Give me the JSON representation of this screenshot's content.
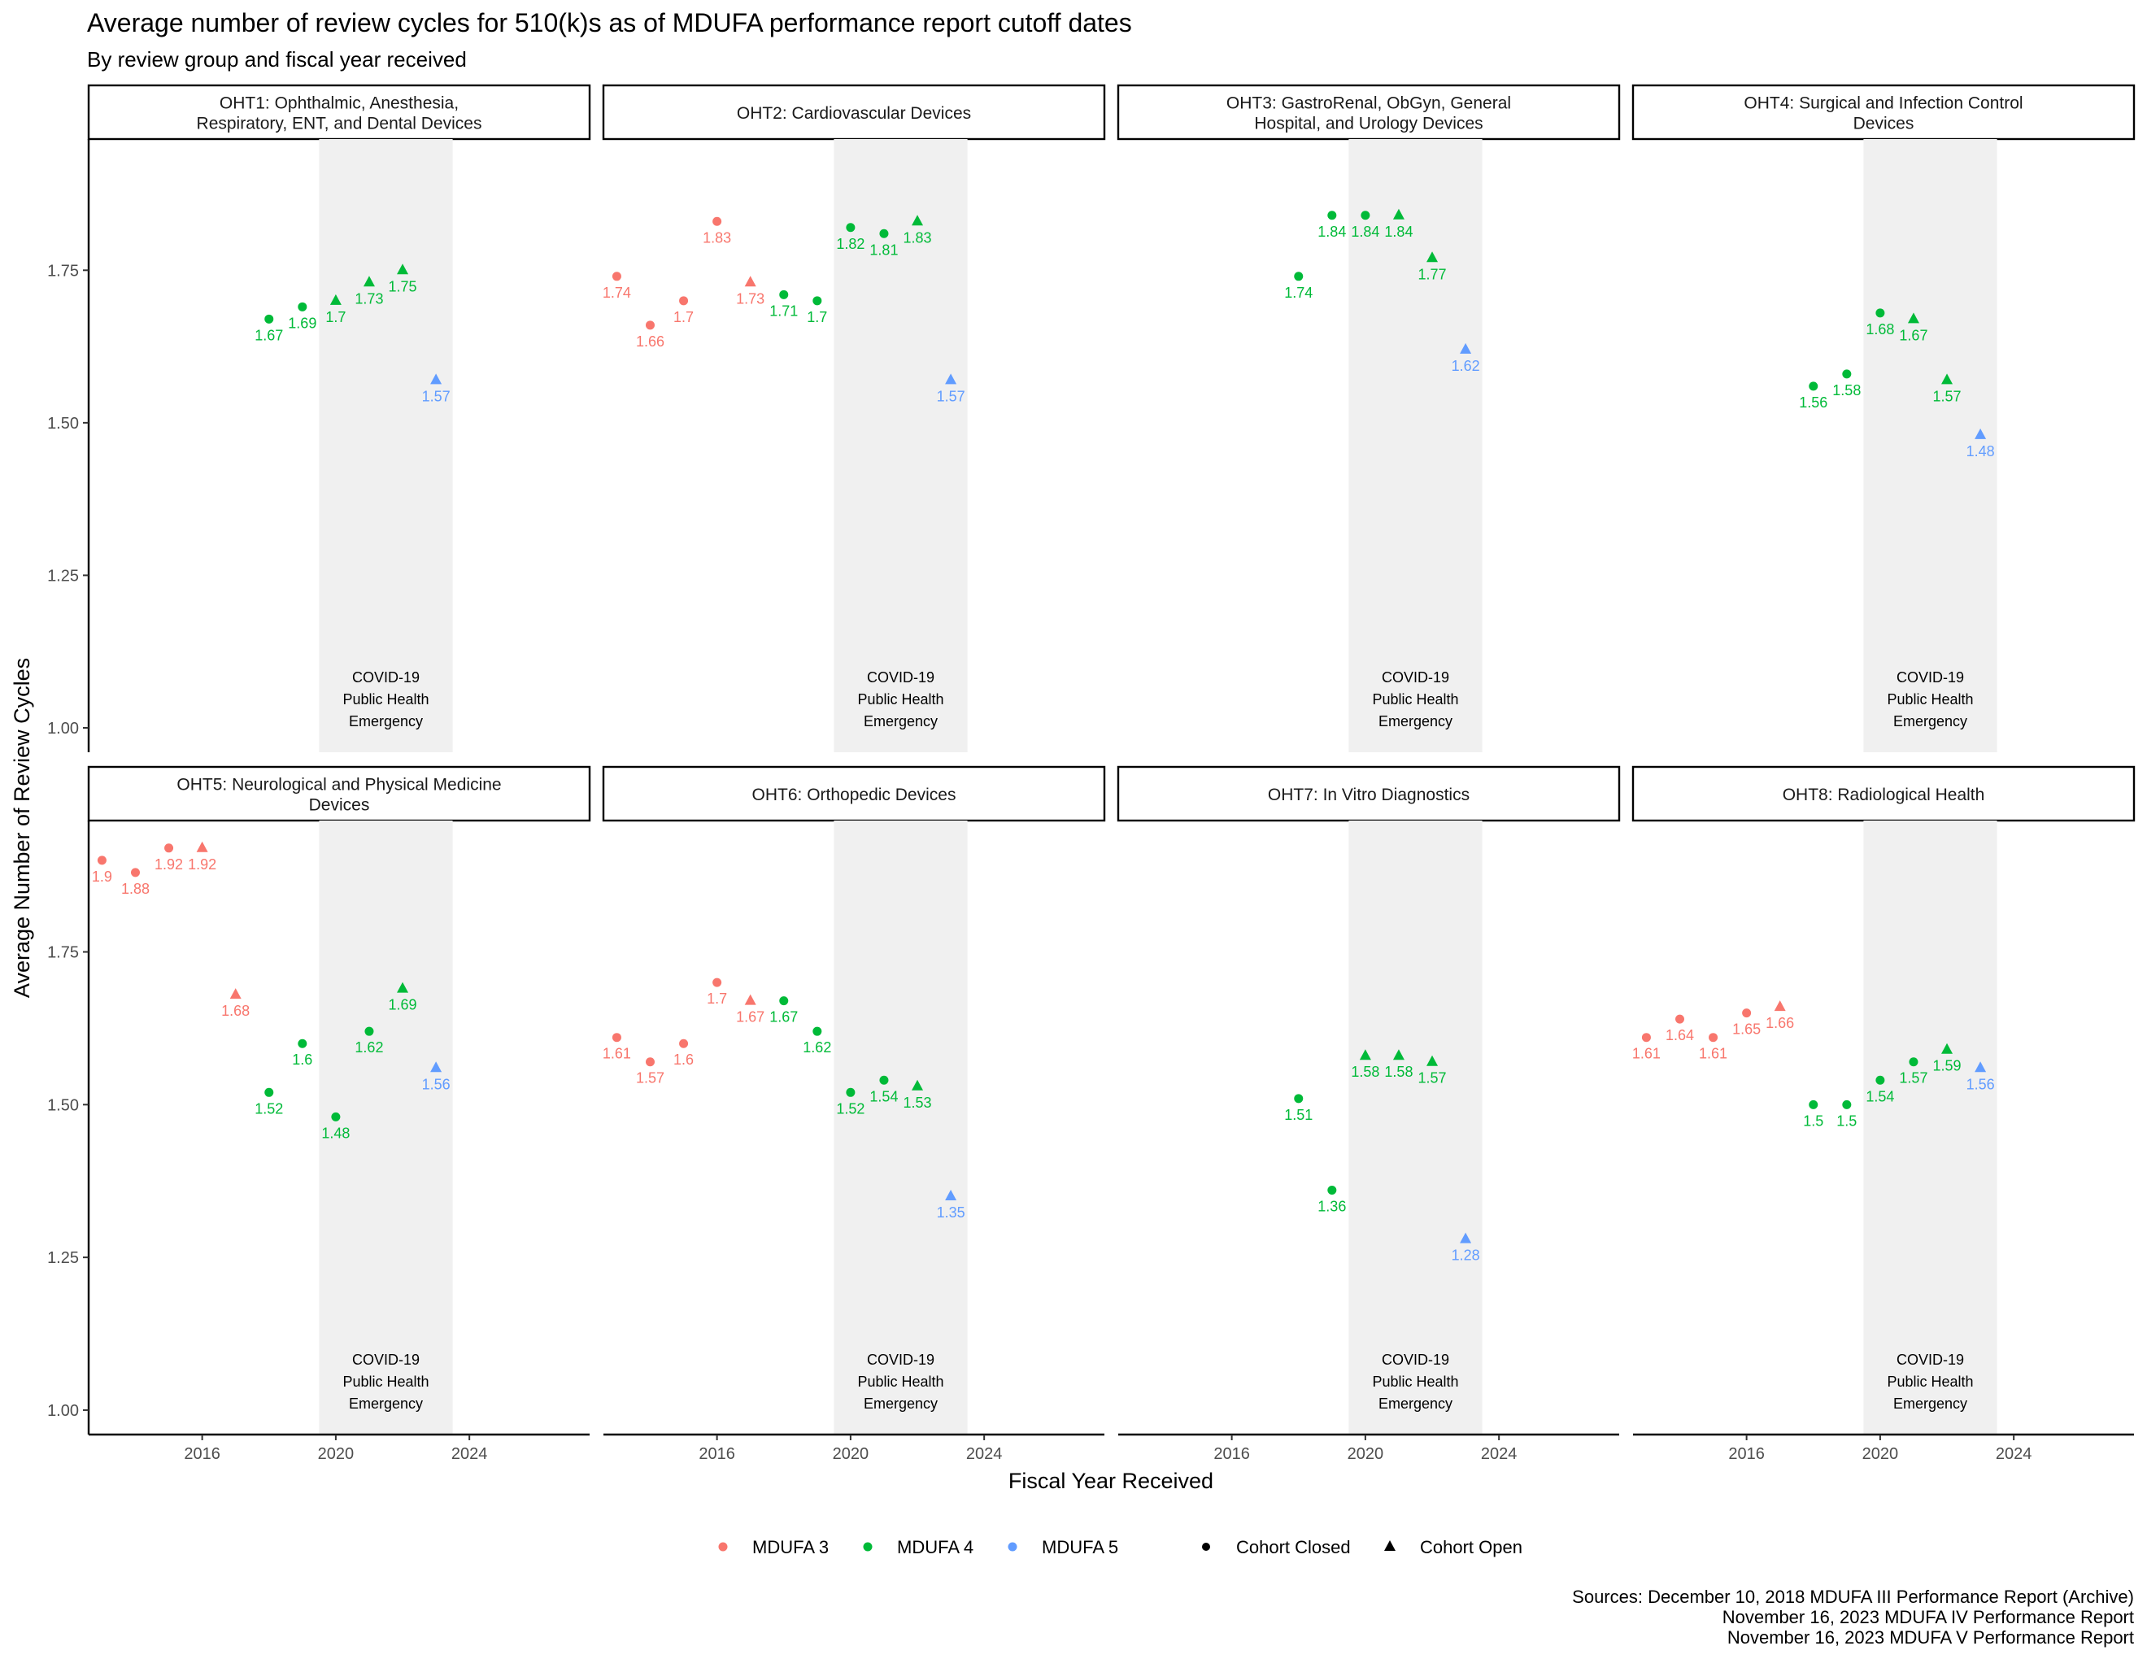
{
  "title": "Average number of review cycles for 510(k)s as of MDUFA performance report cutoff dates",
  "subtitle": "By review group and fiscal year received",
  "xlabel": "Fiscal Year Received",
  "ylabel": "Average Number of Review Cycles",
  "sources": [
    "Sources: December 10, 2018 MDUFA III Performance Report (Archive)",
    "November 16, 2023 MDUFA IV Performance Report",
    "November 16, 2023 MDUFA V Performance Report"
  ],
  "covid_label": [
    "COVID-19",
    "Public Health",
    "Emergency"
  ],
  "legend": {
    "colors": [
      {
        "label": "MDUFA 3",
        "color": "#F8766D"
      },
      {
        "label": "MDUFA 4",
        "color": "#00BA38"
      },
      {
        "label": "MDUFA 5",
        "color": "#619CFF"
      }
    ],
    "shapes": [
      {
        "label": "Cohort Closed",
        "shape": "circle"
      },
      {
        "label": "Cohort Open",
        "shape": "triangle"
      }
    ]
  },
  "chart_data": {
    "type": "scatter",
    "xlim": [
      2012.6,
      2027.6
    ],
    "ylim": [
      0.96,
      1.965
    ],
    "x_ticks": [
      2016,
      2020,
      2024
    ],
    "y_ticks": [
      1.0,
      1.25,
      1.5,
      1.75
    ],
    "y_tick_labels": [
      "1.00",
      "1.25",
      "1.50",
      "1.75"
    ],
    "shaded_region": {
      "from": 2019.5,
      "to": 2023.5
    },
    "grid": false,
    "legend_position": "bottom",
    "panels": [
      {
        "title": [
          "OHT1: Ophthalmic, Anesthesia,",
          "Respiratory, ENT, and Dental Devices"
        ],
        "points": [
          {
            "x": 2018,
            "y": 1.67,
            "label": "1.67",
            "mdufa": 4,
            "cohort": "closed"
          },
          {
            "x": 2019,
            "y": 1.69,
            "label": "1.69",
            "mdufa": 4,
            "cohort": "closed"
          },
          {
            "x": 2020,
            "y": 1.7,
            "label": "1.7",
            "mdufa": 4,
            "cohort": "open"
          },
          {
            "x": 2021,
            "y": 1.73,
            "label": "1.73",
            "mdufa": 4,
            "cohort": "open"
          },
          {
            "x": 2022,
            "y": 1.75,
            "label": "1.75",
            "mdufa": 4,
            "cohort": "open"
          },
          {
            "x": 2023,
            "y": 1.57,
            "label": "1.57",
            "mdufa": 5,
            "cohort": "open"
          }
        ]
      },
      {
        "title": [
          "OHT2: Cardiovascular Devices"
        ],
        "points": [
          {
            "x": 2013,
            "y": 1.74,
            "label": "1.74",
            "mdufa": 3,
            "cohort": "closed"
          },
          {
            "x": 2014,
            "y": 1.66,
            "label": "1.66",
            "mdufa": 3,
            "cohort": "closed"
          },
          {
            "x": 2015,
            "y": 1.7,
            "label": "1.7",
            "mdufa": 3,
            "cohort": "closed"
          },
          {
            "x": 2016,
            "y": 1.83,
            "label": "1.83",
            "mdufa": 3,
            "cohort": "closed"
          },
          {
            "x": 2017,
            "y": 1.73,
            "label": "1.73",
            "mdufa": 3,
            "cohort": "open"
          },
          {
            "x": 2018,
            "y": 1.71,
            "label": "1.71",
            "mdufa": 4,
            "cohort": "closed"
          },
          {
            "x": 2019,
            "y": 1.7,
            "label": "1.7",
            "mdufa": 4,
            "cohort": "closed"
          },
          {
            "x": 2020,
            "y": 1.82,
            "label": "1.82",
            "mdufa": 4,
            "cohort": "closed"
          },
          {
            "x": 2021,
            "y": 1.81,
            "label": "1.81",
            "mdufa": 4,
            "cohort": "closed"
          },
          {
            "x": 2022,
            "y": 1.83,
            "label": "1.83",
            "mdufa": 4,
            "cohort": "open"
          },
          {
            "x": 2023,
            "y": 1.57,
            "label": "1.57",
            "mdufa": 5,
            "cohort": "open"
          }
        ]
      },
      {
        "title": [
          "OHT3: GastroRenal, ObGyn, General",
          "Hospital, and Urology Devices"
        ],
        "points": [
          {
            "x": 2018,
            "y": 1.74,
            "label": "1.74",
            "mdufa": 4,
            "cohort": "closed"
          },
          {
            "x": 2019,
            "y": 1.84,
            "label": "1.84",
            "mdufa": 4,
            "cohort": "closed"
          },
          {
            "x": 2020,
            "y": 1.84,
            "label": "1.84",
            "mdufa": 4,
            "cohort": "closed"
          },
          {
            "x": 2021,
            "y": 1.84,
            "label": "1.84",
            "mdufa": 4,
            "cohort": "open"
          },
          {
            "x": 2022,
            "y": 1.77,
            "label": "1.77",
            "mdufa": 4,
            "cohort": "open"
          },
          {
            "x": 2023,
            "y": 1.62,
            "label": "1.62",
            "mdufa": 5,
            "cohort": "open"
          }
        ]
      },
      {
        "title": [
          "OHT4: Surgical and Infection Control",
          "Devices"
        ],
        "points": [
          {
            "x": 2018,
            "y": 1.56,
            "label": "1.56",
            "mdufa": 4,
            "cohort": "closed"
          },
          {
            "x": 2019,
            "y": 1.58,
            "label": "1.58",
            "mdufa": 4,
            "cohort": "closed"
          },
          {
            "x": 2020,
            "y": 1.68,
            "label": "1.68",
            "mdufa": 4,
            "cohort": "closed"
          },
          {
            "x": 2021,
            "y": 1.67,
            "label": "1.67",
            "mdufa": 4,
            "cohort": "open"
          },
          {
            "x": 2022,
            "y": 1.57,
            "label": "1.57",
            "mdufa": 4,
            "cohort": "open"
          },
          {
            "x": 2023,
            "y": 1.48,
            "label": "1.48",
            "mdufa": 5,
            "cohort": "open"
          }
        ]
      },
      {
        "title": [
          "OHT5: Neurological and Physical Medicine",
          "Devices"
        ],
        "points": [
          {
            "x": 2013,
            "y": 1.9,
            "label": "1.9",
            "mdufa": 3,
            "cohort": "closed"
          },
          {
            "x": 2014,
            "y": 1.88,
            "label": "1.88",
            "mdufa": 3,
            "cohort": "closed"
          },
          {
            "x": 2015,
            "y": 1.92,
            "label": "1.92",
            "mdufa": 3,
            "cohort": "closed"
          },
          {
            "x": 2016,
            "y": 1.92,
            "label": "1.92",
            "mdufa": 3,
            "cohort": "open"
          },
          {
            "x": 2017,
            "y": 1.68,
            "label": "1.68",
            "mdufa": 3,
            "cohort": "open"
          },
          {
            "x": 2018,
            "y": 1.52,
            "label": "1.52",
            "mdufa": 4,
            "cohort": "closed"
          },
          {
            "x": 2019,
            "y": 1.6,
            "label": "1.6",
            "mdufa": 4,
            "cohort": "closed"
          },
          {
            "x": 2020,
            "y": 1.48,
            "label": "1.48",
            "mdufa": 4,
            "cohort": "closed"
          },
          {
            "x": 2021,
            "y": 1.62,
            "label": "1.62",
            "mdufa": 4,
            "cohort": "closed"
          },
          {
            "x": 2022,
            "y": 1.69,
            "label": "1.69",
            "mdufa": 4,
            "cohort": "open"
          },
          {
            "x": 2023,
            "y": 1.56,
            "label": "1.56",
            "mdufa": 5,
            "cohort": "open"
          }
        ]
      },
      {
        "title": [
          "OHT6: Orthopedic Devices"
        ],
        "points": [
          {
            "x": 2013,
            "y": 1.61,
            "label": "1.61",
            "mdufa": 3,
            "cohort": "closed"
          },
          {
            "x": 2014,
            "y": 1.57,
            "label": "1.57",
            "mdufa": 3,
            "cohort": "closed"
          },
          {
            "x": 2015,
            "y": 1.6,
            "label": "1.6",
            "mdufa": 3,
            "cohort": "closed"
          },
          {
            "x": 2016,
            "y": 1.7,
            "label": "1.7",
            "mdufa": 3,
            "cohort": "closed"
          },
          {
            "x": 2017,
            "y": 1.67,
            "label": "1.67",
            "mdufa": 3,
            "cohort": "open"
          },
          {
            "x": 2018,
            "y": 1.67,
            "label": "1.67",
            "mdufa": 4,
            "cohort": "closed"
          },
          {
            "x": 2019,
            "y": 1.62,
            "label": "1.62",
            "mdufa": 4,
            "cohort": "closed"
          },
          {
            "x": 2020,
            "y": 1.52,
            "label": "1.52",
            "mdufa": 4,
            "cohort": "closed"
          },
          {
            "x": 2021,
            "y": 1.54,
            "label": "1.54",
            "mdufa": 4,
            "cohort": "closed"
          },
          {
            "x": 2022,
            "y": 1.53,
            "label": "1.53",
            "mdufa": 4,
            "cohort": "open"
          },
          {
            "x": 2023,
            "y": 1.35,
            "label": "1.35",
            "mdufa": 5,
            "cohort": "open"
          }
        ]
      },
      {
        "title": [
          "OHT7: In Vitro Diagnostics"
        ],
        "points": [
          {
            "x": 2018,
            "y": 1.51,
            "label": "1.51",
            "mdufa": 4,
            "cohort": "closed"
          },
          {
            "x": 2019,
            "y": 1.36,
            "label": "1.36",
            "mdufa": 4,
            "cohort": "closed"
          },
          {
            "x": 2020,
            "y": 1.58,
            "label": "1.58",
            "mdufa": 4,
            "cohort": "open"
          },
          {
            "x": 2021,
            "y": 1.58,
            "label": "1.58",
            "mdufa": 4,
            "cohort": "open"
          },
          {
            "x": 2022,
            "y": 1.57,
            "label": "1.57",
            "mdufa": 4,
            "cohort": "open"
          },
          {
            "x": 2023,
            "y": 1.28,
            "label": "1.28",
            "mdufa": 5,
            "cohort": "open"
          }
        ]
      },
      {
        "title": [
          "OHT8: Radiological Health"
        ],
        "points": [
          {
            "x": 2013,
            "y": 1.61,
            "label": "1.61",
            "mdufa": 3,
            "cohort": "closed"
          },
          {
            "x": 2014,
            "y": 1.64,
            "label": "1.64",
            "mdufa": 3,
            "cohort": "closed"
          },
          {
            "x": 2015,
            "y": 1.61,
            "label": "1.61",
            "mdufa": 3,
            "cohort": "closed"
          },
          {
            "x": 2016,
            "y": 1.65,
            "label": "1.65",
            "mdufa": 3,
            "cohort": "closed"
          },
          {
            "x": 2017,
            "y": 1.66,
            "label": "1.66",
            "mdufa": 3,
            "cohort": "open"
          },
          {
            "x": 2018,
            "y": 1.5,
            "label": "1.5",
            "mdufa": 4,
            "cohort": "closed"
          },
          {
            "x": 2019,
            "y": 1.5,
            "label": "1.5",
            "mdufa": 4,
            "cohort": "closed"
          },
          {
            "x": 2020,
            "y": 1.54,
            "label": "1.54",
            "mdufa": 4,
            "cohort": "closed"
          },
          {
            "x": 2021,
            "y": 1.57,
            "label": "1.57",
            "mdufa": 4,
            "cohort": "closed"
          },
          {
            "x": 2022,
            "y": 1.59,
            "label": "1.59",
            "mdufa": 4,
            "cohort": "open"
          },
          {
            "x": 2023,
            "y": 1.56,
            "label": "1.56",
            "mdufa": 5,
            "cohort": "open"
          }
        ]
      }
    ]
  }
}
